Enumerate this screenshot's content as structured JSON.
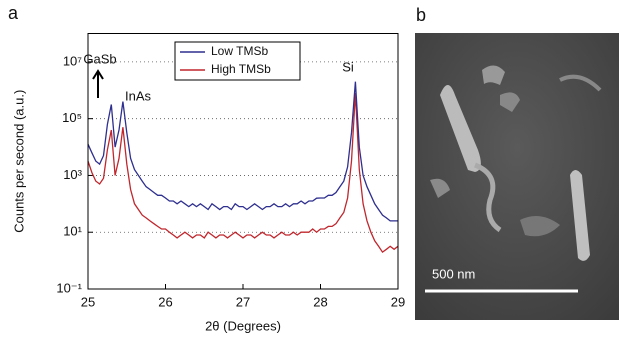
{
  "chart_data": {
    "type": "line",
    "log_y": true,
    "grid": true,
    "legend": "top-center",
    "xlabel": "2θ (Degrees)",
    "ylabel": "Counts per second (a.u.)",
    "xlim": [
      25,
      29
    ],
    "xticks": [
      25,
      26,
      27,
      28,
      29
    ],
    "ylim": [
      0.1,
      100000000
    ],
    "yticks": [
      {
        "value": 0.1,
        "label": "10⁻¹"
      },
      {
        "value": 10,
        "label": "10¹"
      },
      {
        "value": 1000,
        "label": "10³"
      },
      {
        "value": 100000,
        "label": "10⁵"
      },
      {
        "value": 10000000,
        "label": "10⁷"
      }
    ],
    "annotations": [
      "GaSb",
      "InAs",
      "Si"
    ],
    "x": [
      25.0,
      25.05,
      25.1,
      25.15,
      25.2,
      25.25,
      25.3,
      25.35,
      25.4,
      25.45,
      25.5,
      25.55,
      25.6,
      25.65,
      25.7,
      25.75,
      25.8,
      25.85,
      25.9,
      25.95,
      26.0,
      26.05,
      26.1,
      26.15,
      26.2,
      26.25,
      26.3,
      26.35,
      26.4,
      26.45,
      26.5,
      26.55,
      26.6,
      26.65,
      26.7,
      26.75,
      26.8,
      26.85,
      26.9,
      26.95,
      27.0,
      27.05,
      27.1,
      27.15,
      27.2,
      27.25,
      27.3,
      27.35,
      27.4,
      27.45,
      27.5,
      27.55,
      27.6,
      27.65,
      27.7,
      27.75,
      27.8,
      27.85,
      27.9,
      27.95,
      28.0,
      28.05,
      28.1,
      28.15,
      28.2,
      28.25,
      28.3,
      28.35,
      28.4,
      28.45,
      28.5,
      28.55,
      28.6,
      28.65,
      28.7,
      28.75,
      28.8,
      28.85,
      28.9,
      28.95,
      29.0
    ],
    "series": [
      {
        "name": "Low TMSb",
        "color": "#2e2f8f",
        "values": [
          12600,
          6300,
          3200,
          2500,
          5000,
          63000,
          316000,
          10000,
          40000,
          400000,
          32000,
          4000,
          1600,
          1000,
          630,
          400,
          320,
          250,
          200,
          200,
          160,
          126,
          126,
          100,
          126,
          100,
          80,
          100,
          80,
          100,
          80,
          63,
          100,
          80,
          63,
          80,
          80,
          63,
          100,
          80,
          80,
          63,
          80,
          100,
          80,
          63,
          80,
          80,
          100,
          80,
          80,
          100,
          80,
          100,
          100,
          126,
          100,
          126,
          126,
          158,
          160,
          160,
          200,
          200,
          250,
          400,
          630,
          2000,
          32000,
          2000000,
          10000,
          1000,
          400,
          200,
          100,
          63,
          40,
          32,
          25,
          25,
          25
        ]
      },
      {
        "name": "High TMSb",
        "color": "#c0272d",
        "values": [
          3200,
          1260,
          630,
          500,
          800,
          8000,
          40000,
          1000,
          4000,
          50000,
          2500,
          320,
          100,
          63,
          40,
          32,
          25,
          20,
          16,
          13,
          13,
          10,
          8,
          6.3,
          8,
          10,
          8,
          6.3,
          8,
          8,
          6.3,
          10,
          8,
          6.3,
          8,
          8,
          6.3,
          8,
          10,
          8,
          6.3,
          8,
          8,
          6.3,
          8,
          10,
          8,
          8,
          6.3,
          8,
          10,
          8,
          8,
          10,
          8,
          10,
          10,
          10,
          13,
          10,
          13,
          13,
          16,
          16,
          20,
          32,
          50,
          160,
          3200,
          800000,
          1600,
          100,
          25,
          10,
          5,
          3.2,
          2,
          2.5,
          3.2,
          2.5,
          3.2
        ]
      }
    ]
  },
  "panel_labels": [
    "a",
    "b"
  ],
  "scale_bar": "500 nm"
}
